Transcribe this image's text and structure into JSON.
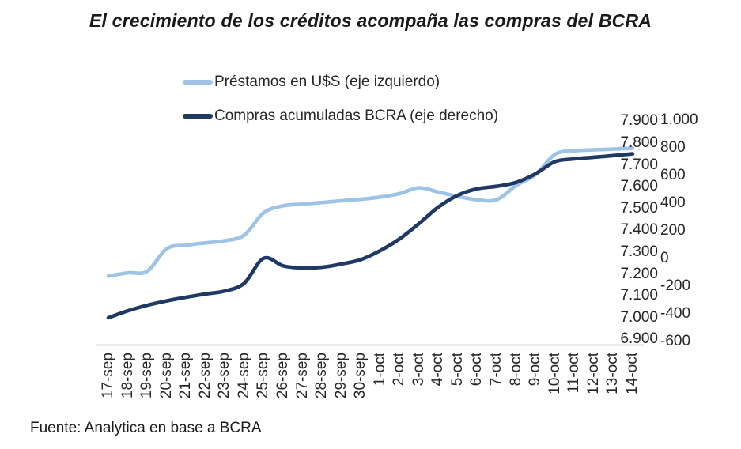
{
  "title": "El crecimiento de los créditos acompaña las compras del BCRA",
  "source_note": "Fuente: Analytica en base a BCRA",
  "chart_data": {
    "type": "line",
    "title": "El crecimiento de los créditos acompaña las compras del BCRA",
    "grid": false,
    "legend_position": "top",
    "smooth": true,
    "categories": [
      "17-sep",
      "18-sep",
      "19-sep",
      "20-sep",
      "21-sep",
      "22-sep",
      "23-sep",
      "24-sep",
      "25-sep",
      "26-sep",
      "27-sep",
      "28-sep",
      "29-sep",
      "30-sep",
      "1-oct",
      "2-oct",
      "3-oct",
      "4-oct",
      "5-oct",
      "6-oct",
      "7-oct",
      "8-oct",
      "9-oct",
      "10-oct",
      "11-oct",
      "12-oct",
      "13-oct",
      "14-oct"
    ],
    "series": [
      {
        "name": "Préstamos en U$S (eje izquierdo)",
        "axis": "left",
        "color": "#9DC3E6",
        "values": [
          7190,
          7205,
          7212,
          7315,
          7332,
          7342,
          7352,
          7378,
          7480,
          7512,
          7520,
          7527,
          7535,
          7542,
          7552,
          7568,
          7595,
          7575,
          7555,
          7540,
          7540,
          7605,
          7655,
          7748,
          7764,
          7769,
          7772,
          7776
        ]
      },
      {
        "name": "Compras acumuladas BCRA (eje derecho)",
        "axis": "right",
        "color": "#1F3864",
        "values": [
          -430,
          -380,
          -340,
          -308,
          -282,
          -258,
          -237,
          -180,
          0,
          -55,
          -70,
          -65,
          -42,
          -10,
          55,
          140,
          250,
          370,
          455,
          502,
          520,
          548,
          610,
          698,
          718,
          730,
          742,
          755
        ]
      }
    ],
    "left_axis": {
      "min": 6900,
      "max": 7900,
      "ticks": [
        "7.900",
        "7.800",
        "7.700",
        "7.600",
        "7.500",
        "7.400",
        "7.300",
        "7.200",
        "7.100",
        "7.000",
        "6.900"
      ]
    },
    "right_axis": {
      "min": -600,
      "max": 1000,
      "ticks": [
        "1.000",
        "800",
        "600",
        "400",
        "200",
        "0",
        "-200",
        "-400",
        "-600"
      ]
    },
    "source_note": "Fuente: Analytica en base a BCRA",
    "axis_line_color": "#D9D9D9"
  }
}
